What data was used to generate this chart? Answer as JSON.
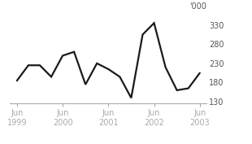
{
  "x_values": [
    0,
    0.5,
    1.0,
    1.5,
    2.0,
    2.5,
    3.0,
    3.5,
    4.0,
    4.5,
    5.0,
    5.5,
    6.0,
    6.5,
    7.0,
    7.5,
    8.0
  ],
  "y_values": [
    185,
    225,
    225,
    195,
    250,
    260,
    175,
    230,
    215,
    195,
    140,
    305,
    335,
    220,
    160,
    165,
    205
  ],
  "x_tick_positions": [
    0,
    2.0,
    4.0,
    6.0,
    8.0
  ],
  "x_tick_labels": [
    "Jun\n1999",
    "Jun\n2000",
    "Jun\n2001",
    "Jun\n2002",
    "Jun\n2003"
  ],
  "y_tick_positions": [
    130,
    180,
    230,
    280,
    330
  ],
  "y_tick_labels": [
    "130",
    "180",
    "230",
    "280",
    "330"
  ],
  "y_unit_label": "'000",
  "ylim": [
    125,
    350
  ],
  "xlim": [
    -0.3,
    8.3
  ],
  "line_color": "#1a1a1a",
  "line_width": 1.6,
  "bg_color": "#ffffff",
  "axis_color": "#aaaaaa",
  "label_color": "#555555",
  "label_fontsize": 7,
  "unit_fontsize": 7
}
